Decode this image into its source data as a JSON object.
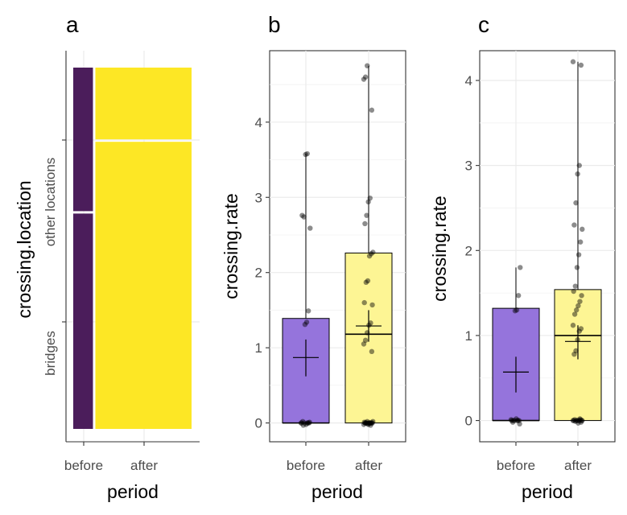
{
  "chart_data": [
    {
      "panel": "a",
      "type": "mosaic",
      "xlabel": "period",
      "ylabel": "crossing.location",
      "x_categories": [
        "before",
        "after"
      ],
      "y_categories": [
        "bridges",
        "other locations"
      ],
      "column_widths": [
        0.17,
        0.83
      ],
      "bridges_share": [
        0.6,
        0.8
      ],
      "colors": {
        "before": "#4b1d5b",
        "after": "#fde725"
      }
    },
    {
      "panel": "b",
      "type": "bar",
      "xlabel": "period",
      "ylabel": "crossing.rate",
      "ylim": [
        -0.25,
        4.95
      ],
      "yticks": [
        0,
        1,
        2,
        3,
        4
      ],
      "categories": [
        "before",
        "after"
      ],
      "values": [
        1.39,
        2.26
      ],
      "medians": [
        0.0,
        1.18
      ],
      "whiskers": [
        [
          0,
          3.58
        ],
        [
          0,
          4.75
        ]
      ],
      "means": [
        0.87,
        1.29
      ],
      "mean_ci": [
        [
          0.62,
          1.11
        ],
        [
          1.08,
          1.5
        ]
      ],
      "colors": {
        "before": "#9574dc",
        "after": "#fdf594"
      },
      "points": [
        [
          0.0,
          0.0,
          0.0,
          0.02,
          0.0,
          -0.02,
          0.0,
          0.01,
          0.0,
          -0.03,
          1.31,
          1.34,
          1.49,
          2.59,
          2.76,
          2.74,
          3.57,
          3.58
        ],
        [
          0.0,
          0.0,
          -0.02,
          0.0,
          0.02,
          0.0,
          -0.03,
          0.0,
          0.01,
          0.0,
          -0.01,
          0.0,
          0.0,
          0.02,
          0.0,
          0.0,
          -0.02,
          0.0,
          0.95,
          1.05,
          1.1,
          1.2,
          1.3,
          1.33,
          1.57,
          1.6,
          1.87,
          1.89,
          2.22,
          2.25,
          2.27,
          2.65,
          2.76,
          2.94,
          2.99,
          4.16,
          4.57,
          4.6,
          4.75
        ]
      ]
    },
    {
      "panel": "c",
      "type": "bar",
      "xlabel": "period",
      "ylabel": "crossing.rate",
      "ylim": [
        -0.25,
        4.35
      ],
      "yticks": [
        0,
        1,
        2,
        3,
        4
      ],
      "categories": [
        "before",
        "after"
      ],
      "values": [
        1.32,
        1.54
      ],
      "medians": [
        0.0,
        1.0
      ],
      "whiskers": [
        [
          0,
          1.8
        ],
        [
          0,
          4.22
        ]
      ],
      "means": [
        0.57,
        0.93
      ],
      "mean_ci": [
        [
          0.33,
          0.75
        ],
        [
          0.72,
          1.12
        ]
      ],
      "colors": {
        "before": "#9574dc",
        "after": "#fdf594"
      },
      "points": [
        [
          0.0,
          0.0,
          0.01,
          -0.02,
          0.0,
          0.02,
          0.0,
          -0.04,
          0.0,
          0.0,
          1.29,
          1.3,
          1.47,
          1.8
        ],
        [
          0.0,
          -0.02,
          0.0,
          0.01,
          0.0,
          -0.03,
          0.02,
          0.0,
          0.0,
          -0.01,
          0.0,
          0.0,
          0.01,
          0.0,
          0.78,
          0.82,
          0.95,
          1.05,
          1.08,
          1.12,
          1.25,
          1.3,
          1.35,
          1.4,
          1.47,
          1.52,
          1.58,
          1.8,
          1.95,
          2.1,
          2.25,
          2.3,
          2.56,
          2.9,
          3.0,
          4.18,
          4.22
        ]
      ]
    }
  ]
}
